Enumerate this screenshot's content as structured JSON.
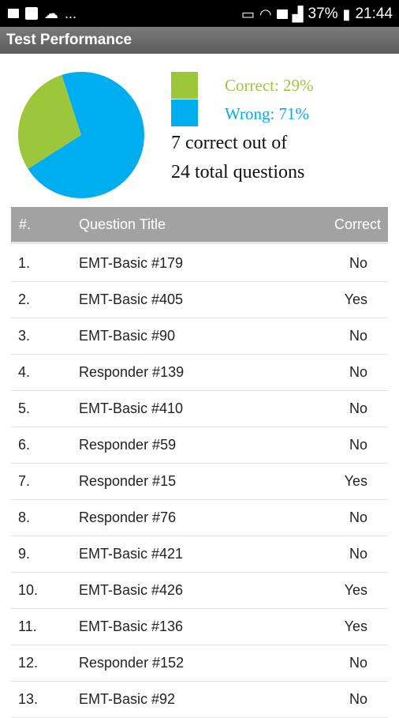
{
  "status_bar": {
    "icons": [
      "gallery-icon",
      "facebook-icon",
      "chat-icon",
      "cast-icon",
      "wifi-icon",
      "sim-icon",
      "signal-icon",
      "battery-icon"
    ],
    "dots": "...",
    "battery": "37%",
    "time": "21:44"
  },
  "app_bar": {
    "title": "Test Performance"
  },
  "chart_data": {
    "type": "pie",
    "categories": [
      "Correct",
      "Wrong"
    ],
    "values": [
      29,
      71
    ],
    "colors": [
      "#9dc73b",
      "#00aeef"
    ]
  },
  "legend": {
    "correct": "Correct: 29%",
    "wrong": "Wrong: 71%"
  },
  "summary": {
    "line1": "7 correct out of",
    "line2": "24 total questions"
  },
  "table": {
    "headers": {
      "num": "#.",
      "title": "Question Title",
      "correct": "Correct"
    },
    "rows": [
      {
        "num": "1.",
        "title": "EMT-Basic #179",
        "correct": "No"
      },
      {
        "num": "2.",
        "title": "EMT-Basic #405",
        "correct": "Yes"
      },
      {
        "num": "3.",
        "title": "EMT-Basic #90",
        "correct": "No"
      },
      {
        "num": "4.",
        "title": "Responder #139",
        "correct": "No"
      },
      {
        "num": "5.",
        "title": "EMT-Basic #410",
        "correct": "No"
      },
      {
        "num": "6.",
        "title": "Responder #59",
        "correct": "No"
      },
      {
        "num": "7.",
        "title": "Responder #15",
        "correct": "Yes"
      },
      {
        "num": "8.",
        "title": "Responder #76",
        "correct": "No"
      },
      {
        "num": "9.",
        "title": "EMT-Basic #421",
        "correct": "No"
      },
      {
        "num": "10.",
        "title": "EMT-Basic #426",
        "correct": "Yes"
      },
      {
        "num": "11.",
        "title": "EMT-Basic #136",
        "correct": "Yes"
      },
      {
        "num": "12.",
        "title": "Responder #152",
        "correct": "No"
      },
      {
        "num": "13.",
        "title": "EMT-Basic #92",
        "correct": "No"
      }
    ]
  }
}
